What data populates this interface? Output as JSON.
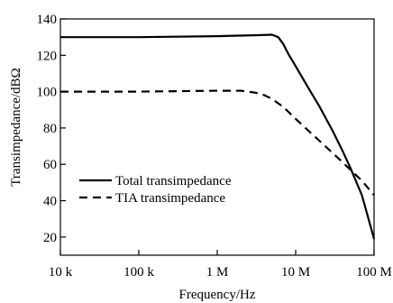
{
  "chart_data": {
    "type": "line",
    "xlabel": "Frequency/Hz",
    "ylabel": "Transimpedance/dBΩ",
    "x_scale": "log",
    "xlim": [
      10000,
      100000000
    ],
    "ylim": [
      10,
      140
    ],
    "x_ticks": [
      {
        "value": 10000,
        "label": "10 k"
      },
      {
        "value": 100000,
        "label": "100 k"
      },
      {
        "value": 1000000,
        "label": "1 M"
      },
      {
        "value": 10000000,
        "label": "10 M"
      },
      {
        "value": 100000000,
        "label": "100 M"
      }
    ],
    "y_ticks": [
      {
        "value": 20,
        "label": "20"
      },
      {
        "value": 40,
        "label": "40"
      },
      {
        "value": 60,
        "label": "60"
      },
      {
        "value": 80,
        "label": "80"
      },
      {
        "value": 100,
        "label": "100"
      },
      {
        "value": 120,
        "label": "120"
      },
      {
        "value": 140,
        "label": "140"
      }
    ],
    "grid": false,
    "legend_position": "lower-left",
    "series": [
      {
        "name": "Total transimpedance",
        "style": "solid",
        "color": "#000000",
        "points": [
          [
            10000,
            130
          ],
          [
            100000,
            130
          ],
          [
            1000000,
            130.5
          ],
          [
            3000000,
            131
          ],
          [
            5000000,
            131.3
          ],
          [
            6000000,
            130
          ],
          [
            7000000,
            126
          ],
          [
            8000000,
            121
          ],
          [
            10000000,
            114
          ],
          [
            15000000,
            101
          ],
          [
            20000000,
            92
          ],
          [
            30000000,
            78
          ],
          [
            40000000,
            67
          ],
          [
            50000000,
            58
          ],
          [
            70000000,
            43
          ],
          [
            100000000,
            19
          ]
        ]
      },
      {
        "name": "TIA transimpedance",
        "style": "dashed",
        "color": "#000000",
        "points": [
          [
            10000,
            100
          ],
          [
            100000,
            100
          ],
          [
            1000000,
            100.5
          ],
          [
            2000000,
            100.5
          ],
          [
            3000000,
            99.5
          ],
          [
            4000000,
            98
          ],
          [
            5000000,
            96
          ],
          [
            7000000,
            91.5
          ],
          [
            10000000,
            85
          ],
          [
            15000000,
            78
          ],
          [
            20000000,
            73
          ],
          [
            30000000,
            66
          ],
          [
            40000000,
            61
          ],
          [
            50000000,
            57
          ],
          [
            70000000,
            51
          ],
          [
            100000000,
            43
          ]
        ]
      }
    ]
  }
}
